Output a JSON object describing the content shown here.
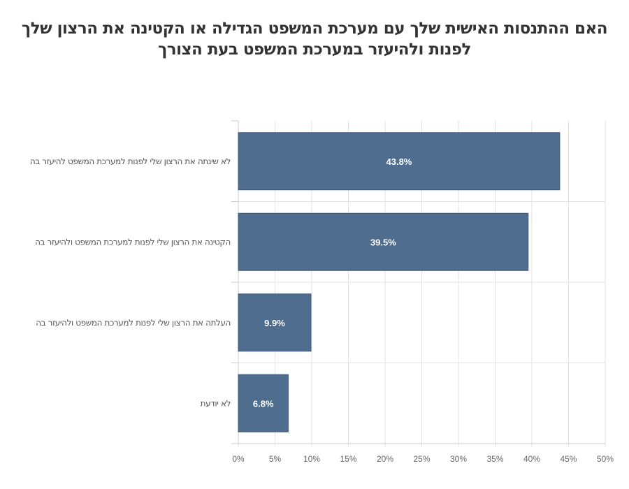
{
  "chart_data": {
    "type": "bar",
    "orientation": "horizontal",
    "title_lines": [
      "האם ההתנסות האישית שלך עם מערכת המשפט הגדילה או הקטינה את הרצון שלך",
      "לפנות ולהיעזר במערכת המשפט בעת הצורך"
    ],
    "categories": [
      "לא שינתה את הרצון שלי לפנות למערכת המשפט להיעזר בה",
      "הקטינה את הרצון שלי לפנות למערכת המשפט ולהיעזר בה",
      "העלתה את הרצון שלי לפנות למערכת המשפט ולהיעזר בה",
      "לא יודעת"
    ],
    "values": [
      43.8,
      39.5,
      9.9,
      6.8
    ],
    "data_labels": [
      "43.8%",
      "39.5%",
      "9.9%",
      "6.8%"
    ],
    "xlim": [
      0,
      50
    ],
    "x_ticks": [
      "0%",
      "5%",
      "10%",
      "15%",
      "20%",
      "25%",
      "30%",
      "35%",
      "40%",
      "45%",
      "50%"
    ],
    "xlabel": "",
    "ylabel": "",
    "grid": true,
    "bar_color": "#4f6d8f"
  }
}
